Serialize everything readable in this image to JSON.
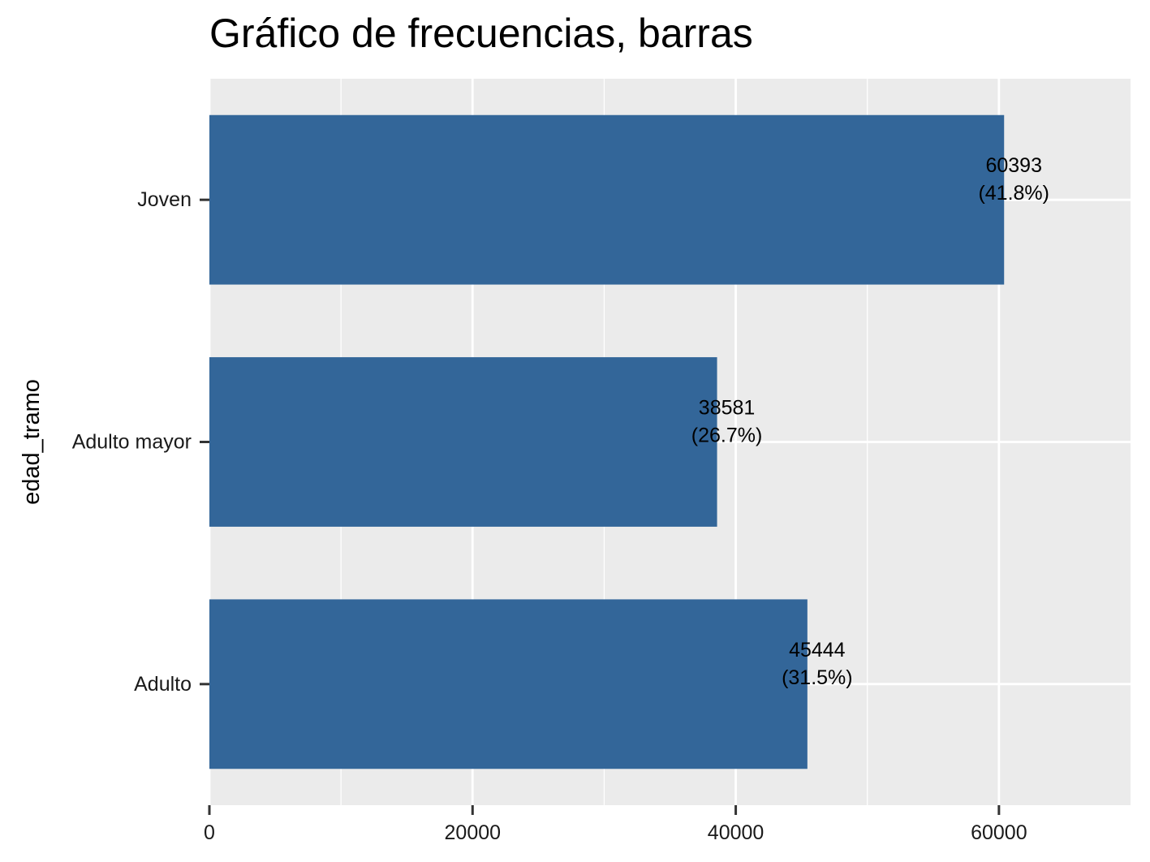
{
  "chart_data": {
    "type": "bar",
    "orientation": "horizontal",
    "title": "Gráfico de frecuencias, barras",
    "xlabel": "",
    "ylabel": "edad_tramo",
    "categories": [
      "Joven",
      "Adulto mayor",
      "Adulto"
    ],
    "values": [
      60393,
      38581,
      45444
    ],
    "value_labels": [
      "60393",
      "38581",
      "45444"
    ],
    "percent_labels": [
      "(41.8%)",
      "(26.7%)",
      "(31.5%)"
    ],
    "xticks": [
      0,
      20000,
      40000,
      60000
    ],
    "xtick_labels": [
      "0",
      "20000",
      "40000",
      "60000"
    ],
    "xlim": [
      0,
      70000
    ],
    "grid": true,
    "bar_color": "#336699",
    "panel_color": "#ebebeb",
    "grid_color": "#ffffff"
  }
}
